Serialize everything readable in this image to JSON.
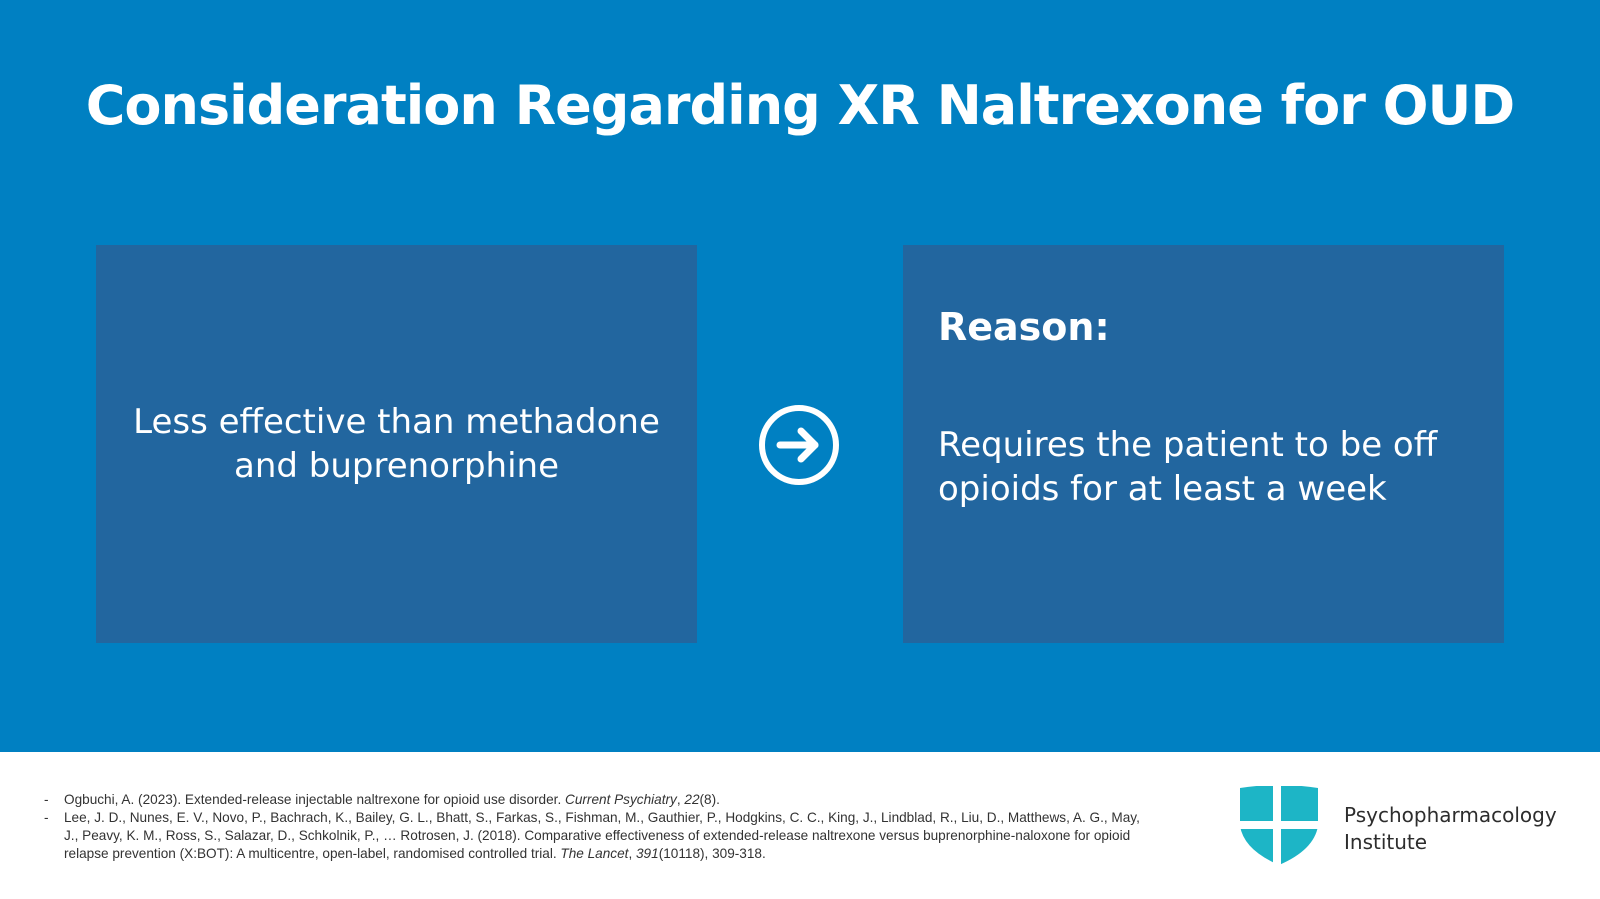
{
  "slide": {
    "title": "Consideration Regarding XR Naltrexone for OUD",
    "left_card": {
      "text": "Less effective than methadone and buprenorphine"
    },
    "right_card": {
      "heading": "Reason:",
      "text": "Requires the patient to be off opioids for at least a week"
    },
    "arrow_icon": "arrow-right-circle-icon"
  },
  "references": [
    {
      "pre": "Ogbuchi, A. (2023). Extended-release injectable naltrexone for opioid use disorder. ",
      "journal": "Current Psychiatry",
      "sep": ", ",
      "volume": "22",
      "post": "(8)."
    },
    {
      "pre": "Lee, J. D., Nunes, E. V., Novo, P., Bachrach, K., Bailey, G. L., Bhatt, S., Farkas, S., Fishman, M., Gauthier, P., Hodgkins, C. C., King, J., Lindblad, R., Liu, D., Matthews, A. G., May, J., Peavy, K. M., Ross, S., Salazar, D., Schkolnik, P., … Rotrosen, J. (2018). Comparative effectiveness of extended-release naltrexone versus buprenorphine-naloxone for opioid relapse prevention (X:BOT): A multicentre, open-label, randomised controlled trial. ",
      "journal": "The Lancet",
      "sep": ", ",
      "volume": "391",
      "post": "(10118), 309-318."
    }
  ],
  "logo": {
    "line1": "Psychopharmacology",
    "line2": "Institute",
    "icon": "shield-cross-icon"
  },
  "colors": {
    "background": "#0080c2",
    "card": "#22669f",
    "logo_shield": "#1db5c6"
  }
}
